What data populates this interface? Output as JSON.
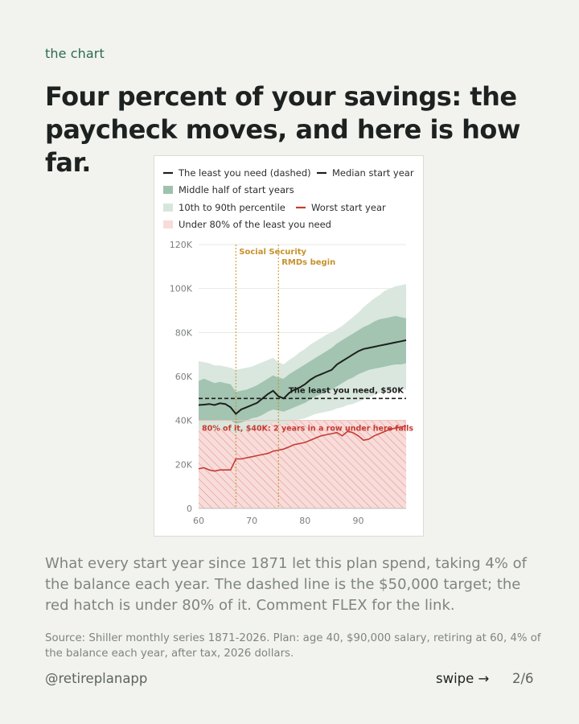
{
  "eyebrow": "the chart",
  "title": "Four percent of your savings: the paycheck moves, and here is how far.",
  "body": "What every start year since 1871 let this plan spend, taking 4% of the balance each year. The dashed line is the $50,000 target; the red hatch is under 80% of it. Comment FLEX for the link.",
  "source": "Source: Shiller monthly series 1871-2026. Plan: age 40, $90,000 salary, retiring at 60, 4% of the balance each year, after tax, 2026 dollars.",
  "footer": {
    "handle": "@retireplanapp",
    "swipe": "swipe →",
    "page": "2/6"
  },
  "colors": {
    "median": "#1d1f1e",
    "worst": "#c63b32",
    "iqr_band": "#9fc2ae",
    "p10_90_band": "#d7e6dc",
    "fail_zone": "#f7dcda",
    "marker": "#c6912a"
  },
  "chart_data": {
    "type": "area",
    "title": "",
    "xlabel": "",
    "ylabel": "",
    "xlim": [
      60,
      99
    ],
    "ylim": [
      0,
      120000
    ],
    "x_ticks": [
      60,
      70,
      80,
      90
    ],
    "x_tick_labels": [
      "60",
      "70",
      "80",
      "90"
    ],
    "y_ticks": [
      0,
      20000,
      40000,
      60000,
      80000,
      100000,
      120000
    ],
    "y_tick_labels": [
      "0",
      "20K",
      "40K",
      "60K",
      "80K",
      "100K",
      "120K"
    ],
    "grid": "horizontal",
    "legend_placement": "top",
    "legend": [
      {
        "label": "The least you need (dashed)",
        "key": "median"
      },
      {
        "label": "Median start year",
        "key": "median"
      },
      {
        "label": "Middle half of start years",
        "key": "iqr_band"
      },
      {
        "label": "10th to 90th percentile",
        "key": "p10_90_band"
      },
      {
        "label": "Worst start year",
        "key": "worst"
      },
      {
        "label": "Under 80% of the least you need",
        "key": "fail_zone"
      }
    ],
    "x": [
      60,
      61,
      62,
      63,
      64,
      65,
      66,
      67,
      68,
      69,
      70,
      71,
      72,
      73,
      74,
      75,
      76,
      77,
      78,
      79,
      80,
      81,
      82,
      83,
      84,
      85,
      86,
      87,
      88,
      89,
      90,
      91,
      92,
      93,
      94,
      95,
      96,
      97,
      98,
      99
    ],
    "series": [
      {
        "name": "Median start year",
        "values": [
          47000,
          47200,
          47500,
          47000,
          47800,
          47500,
          46000,
          43000,
          45000,
          46000,
          47000,
          48000,
          50000,
          52000,
          53500,
          51000,
          50000,
          52500,
          54000,
          55000,
          56500,
          58500,
          60000,
          61000,
          62000,
          63000,
          65500,
          67000,
          68500,
          70000,
          71500,
          72500,
          73000,
          73500,
          74000,
          74500,
          75000,
          75500,
          76000,
          76500
        ]
      },
      {
        "name": "Worst start year",
        "values": [
          18000,
          18500,
          17500,
          17000,
          17500,
          17500,
          17500,
          22500,
          22500,
          23000,
          23500,
          24000,
          24500,
          25000,
          26000,
          26500,
          27000,
          28000,
          29000,
          29500,
          30000,
          31000,
          32000,
          33000,
          33500,
          34000,
          34500,
          33000,
          35000,
          34500,
          33000,
          31000,
          31500,
          33000,
          34000,
          35000,
          36000,
          36500,
          37000,
          37500
        ]
      },
      {
        "name": "Middle half lower",
        "values": [
          40000,
          40000,
          40000,
          40000,
          40000,
          40000,
          40000,
          38500,
          39000,
          40000,
          41000,
          41500,
          42500,
          44000,
          45000,
          44500,
          44000,
          45000,
          46000,
          47000,
          48000,
          49500,
          51000,
          52000,
          53000,
          54000,
          55500,
          57000,
          58500,
          59500,
          61000,
          62000,
          63000,
          63500,
          64000,
          64500,
          65000,
          65500,
          65500,
          66000
        ]
      },
      {
        "name": "Middle half upper",
        "values": [
          58000,
          59000,
          58000,
          57000,
          57500,
          57000,
          56500,
          53000,
          53500,
          54000,
          55000,
          56000,
          57500,
          59000,
          60500,
          59500,
          59000,
          61000,
          62500,
          64000,
          65500,
          67000,
          68500,
          70000,
          71500,
          73000,
          75000,
          76500,
          78000,
          79500,
          81000,
          82500,
          83500,
          85000,
          86000,
          86500,
          87000,
          87500,
          87000,
          86500
        ]
      },
      {
        "name": "10th to 90th lower",
        "values": [
          36000,
          36500,
          36000,
          35500,
          36000,
          36000,
          35500,
          34000,
          34500,
          35000,
          35500,
          36000,
          37000,
          38000,
          39000,
          38500,
          38000,
          39000,
          40000,
          40500,
          41000,
          42000,
          43000,
          43500,
          44000,
          44500,
          45500,
          46000,
          47000,
          47500,
          48500,
          49500,
          50500,
          51500,
          52500,
          53000,
          53500,
          54000,
          54000,
          54000
        ]
      },
      {
        "name": "10th to 90th upper",
        "values": [
          67000,
          66500,
          66000,
          65000,
          65000,
          64500,
          64000,
          63000,
          63500,
          64000,
          64500,
          65500,
          66500,
          67500,
          68500,
          66500,
          65500,
          67500,
          69000,
          71000,
          72500,
          74500,
          76000,
          77500,
          79000,
          80000,
          81500,
          83000,
          85000,
          87000,
          89000,
          91500,
          93500,
          95500,
          97000,
          99000,
          100000,
          101000,
          101500,
          102000
        ]
      }
    ],
    "target": {
      "value": 50000,
      "label": "The least you need, $50K"
    },
    "fail_threshold": {
      "value": 40000,
      "label": "80% of it, $40K: 2 years in a row under here fails"
    },
    "markers": [
      {
        "x": 67,
        "label": "Social Security"
      },
      {
        "x": 75,
        "label": "RMDs begin"
      }
    ]
  }
}
